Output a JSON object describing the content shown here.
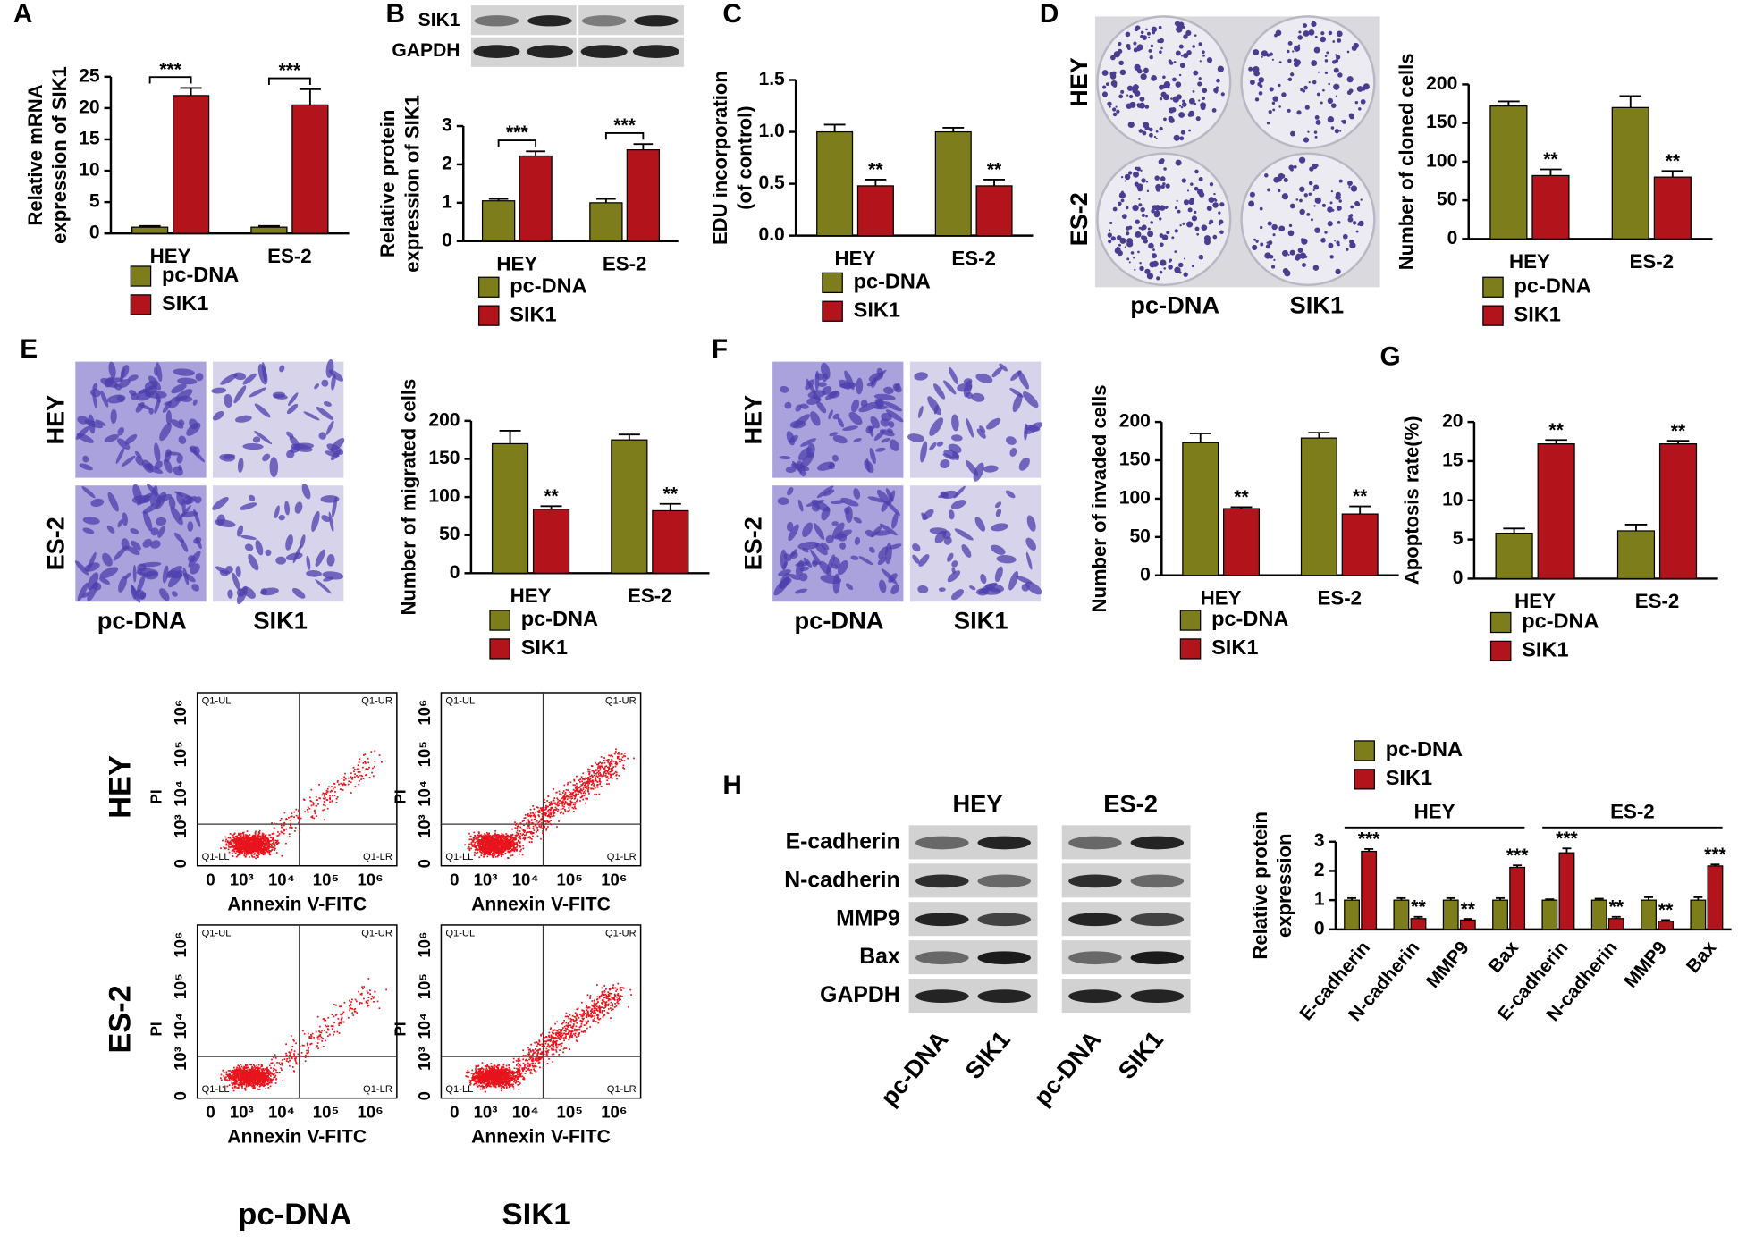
{
  "chart_data": [
    {
      "type": "bar",
      "panel": "A",
      "ylabel": [
        "Relative  mRNA",
        "expression of SIK1"
      ],
      "categories": [
        "HEY",
        "ES-2"
      ],
      "series": [
        {
          "name": "pc-DNA",
          "color": "#7d7d1c",
          "values": [
            1,
            1
          ],
          "errors": [
            0.2,
            0.2
          ]
        },
        {
          "name": "SIK1",
          "color": "#b3141c",
          "values": [
            22,
            20.5
          ],
          "errors": [
            1.2,
            2.5
          ],
          "significance": [
            "***",
            "***"
          ]
        }
      ],
      "significance_style": "bracket",
      "ylim": [
        0,
        25
      ],
      "yticks": [
        0,
        5,
        10,
        15,
        20,
        25
      ]
    },
    {
      "type": "bar",
      "panel": "B",
      "ylabel": [
        "Relative  protein",
        "expression of SIK1"
      ],
      "categories": [
        "HEY",
        "ES-2"
      ],
      "series": [
        {
          "name": "pc-DNA",
          "color": "#7d7d1c",
          "values": [
            1.05,
            1.0
          ],
          "errors": [
            0.05,
            0.1
          ]
        },
        {
          "name": "SIK1",
          "color": "#b3141c",
          "values": [
            2.22,
            2.38
          ],
          "errors": [
            0.12,
            0.15
          ],
          "significance": [
            "***",
            "***"
          ]
        }
      ],
      "significance_style": "bracket",
      "ylim": [
        0,
        3
      ],
      "yticks": [
        0,
        1,
        2,
        3
      ]
    },
    {
      "type": "bar",
      "panel": "C",
      "ylabel": [
        "EDU incorporation",
        "(of control)"
      ],
      "categories": [
        "HEY",
        "ES-2"
      ],
      "series": [
        {
          "name": "pc-DNA",
          "color": "#7d7d1c",
          "values": [
            1.0,
            1.0
          ],
          "errors": [
            0.07,
            0.04
          ]
        },
        {
          "name": "SIK1",
          "color": "#b3141c",
          "values": [
            0.48,
            0.48
          ],
          "errors": [
            0.06,
            0.06
          ],
          "significance": [
            "**",
            "**"
          ]
        }
      ],
      "significance_style": "above",
      "ylim": [
        0,
        1.5
      ],
      "yticks": [
        {
          "value": 0,
          "label": "0.0"
        },
        {
          "value": 0.5,
          "label": "0.5"
        },
        {
          "value": 1,
          "label": "1.0"
        },
        {
          "value": 1.5,
          "label": "1.5"
        }
      ]
    },
    {
      "type": "bar",
      "panel": "D",
      "ylabel": [
        "Number of cloned cells"
      ],
      "categories": [
        "HEY",
        "ES-2"
      ],
      "series": [
        {
          "name": "pc-DNA",
          "color": "#7d7d1c",
          "values": [
            172,
            170
          ],
          "errors": [
            6,
            15
          ]
        },
        {
          "name": "SIK1",
          "color": "#b3141c",
          "values": [
            82,
            80
          ],
          "errors": [
            8,
            8
          ],
          "significance": [
            "**",
            "**"
          ]
        }
      ],
      "significance_style": "above",
      "ylim": [
        0,
        200
      ],
      "yticks": [
        0,
        50,
        100,
        150,
        200
      ]
    },
    {
      "type": "bar",
      "panel": "E",
      "ylabel": [
        "Number of migrated cells"
      ],
      "categories": [
        "HEY",
        "ES-2"
      ],
      "series": [
        {
          "name": "pc-DNA",
          "color": "#7d7d1c",
          "values": [
            170,
            175
          ],
          "errors": [
            17,
            7
          ]
        },
        {
          "name": "SIK1",
          "color": "#b3141c",
          "values": [
            84,
            82
          ],
          "errors": [
            4,
            9
          ],
          "significance": [
            "**",
            "**"
          ]
        }
      ],
      "significance_style": "above",
      "ylim": [
        0,
        200
      ],
      "yticks": [
        0,
        50,
        100,
        150,
        200
      ]
    },
    {
      "type": "bar",
      "panel": "F",
      "ylabel": [
        "Number of invaded cells"
      ],
      "categories": [
        "HEY",
        "ES-2"
      ],
      "series": [
        {
          "name": "pc-DNA",
          "color": "#7d7d1c",
          "values": [
            173,
            179
          ],
          "errors": [
            12,
            7
          ]
        },
        {
          "name": "SIK1",
          "color": "#b3141c",
          "values": [
            87,
            80
          ],
          "errors": [
            2,
            10
          ],
          "significance": [
            "**",
            "**"
          ]
        }
      ],
      "significance_style": "above",
      "ylim": [
        0,
        200
      ],
      "yticks": [
        0,
        50,
        100,
        150,
        200
      ]
    },
    {
      "type": "bar",
      "panel": "G",
      "ylabel": [
        "Apoptosis rate(%)"
      ],
      "categories": [
        "HEY",
        "ES-2"
      ],
      "series": [
        {
          "name": "pc-DNA",
          "color": "#7d7d1c",
          "values": [
            5.8,
            6.1
          ],
          "errors": [
            0.6,
            0.8
          ]
        },
        {
          "name": "SIK1",
          "color": "#b3141c",
          "values": [
            17.2,
            17.2
          ],
          "errors": [
            0.5,
            0.4
          ],
          "significance": [
            "**",
            "**"
          ]
        }
      ],
      "significance_style": "above",
      "ylim": [
        0,
        20
      ],
      "yticks": [
        0,
        5,
        10,
        15,
        20
      ]
    },
    {
      "type": "bar",
      "ylabel": [
        "Relative  protein",
        "expression"
      ],
      "groups": [
        "HEY",
        "ES-2"
      ],
      "categories": [
        "E-cadherin",
        "N-cadherin",
        "MMP9",
        "Bax",
        "E-cadherin",
        "N-cadherin",
        "MMP9",
        "Bax"
      ],
      "series": [
        {
          "name": "pc-DNA",
          "color": "#7d7d1c",
          "values": [
            1,
            1,
            1,
            1,
            1,
            1,
            1,
            1
          ],
          "errors": [
            0.07,
            0.07,
            0.07,
            0.07,
            0.03,
            0.05,
            0.1,
            0.1
          ]
        },
        {
          "name": "SIK1",
          "color": "#b3141c",
          "values": [
            2.67,
            0.37,
            0.32,
            2.12,
            2.62,
            0.37,
            0.28,
            2.17
          ],
          "errors": [
            0.08,
            0.06,
            0.04,
            0.07,
            0.15,
            0.06,
            0.04,
            0.05
          ],
          "significance": [
            "***",
            "**",
            "**",
            "***",
            "***",
            "**",
            "**",
            "***"
          ]
        }
      ],
      "significance_style": "above",
      "rotate_categories": true,
      "ylim": [
        0,
        3
      ],
      "yticks": [
        0,
        1,
        2,
        3
      ]
    }
  ],
  "blot_B": {
    "rows": [
      "SIK1",
      "GAPDH"
    ]
  },
  "colony_D": {
    "rows": [
      "HEY",
      "ES-2"
    ],
    "columns": [
      "pc-DNA",
      "SIK1"
    ]
  },
  "transwell_E": {
    "rows": [
      "HEY",
      "ES-2"
    ],
    "columns": [
      "pc-DNA",
      "SIK1"
    ]
  },
  "transwell_F": {
    "rows": [
      "HEY",
      "ES-2"
    ],
    "columns": [
      "pc-DNA",
      "SIK1"
    ]
  },
  "flow_G": {
    "rows": [
      "HEY",
      "ES-2"
    ],
    "columns": [
      "pc-DNA",
      "SIK1"
    ],
    "quadrants": [
      "Q1-UL",
      "Q1-UR",
      "Q1-LL",
      "Q1-LR"
    ],
    "xlabel": "Annexin V-FITC",
    "ylabel": "PI",
    "ticks": [
      "0",
      "10³",
      "10⁴",
      "10⁵",
      "10⁶"
    ]
  },
  "blot_H": {
    "panel": "H",
    "groups": [
      "HEY",
      "ES-2"
    ],
    "rows": [
      "E-cadherin",
      "N-cadherin",
      "MMP9",
      "Bax",
      "GAPDH"
    ],
    "lanes": [
      "pc-DNA",
      "SIK1",
      "pc-DNA",
      "SIK1"
    ]
  }
}
